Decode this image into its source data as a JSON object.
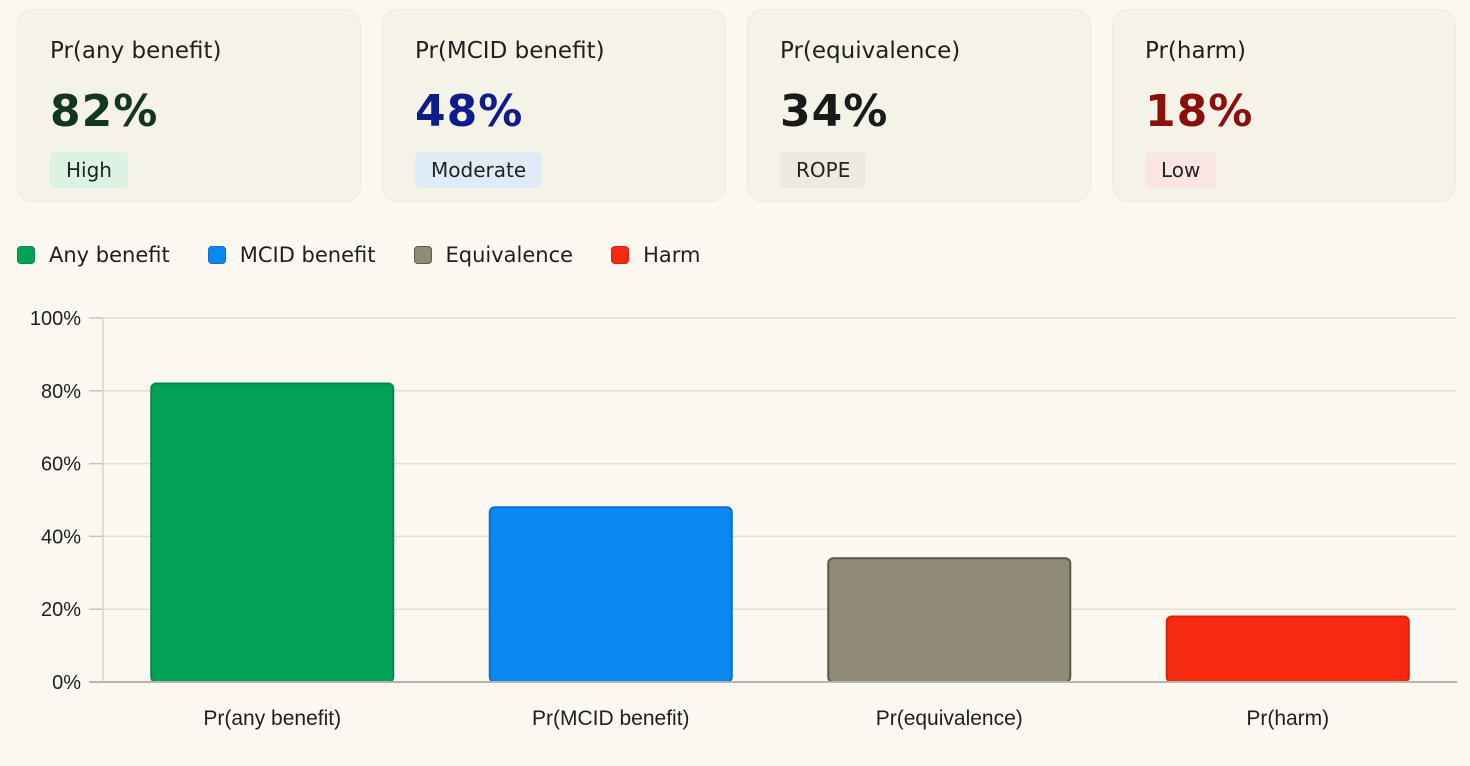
{
  "cards": [
    {
      "label": "Pr(any benefit)",
      "value": "82%",
      "badge": "High",
      "value_color": "#12361f",
      "badge_bg": "#dcf3e4"
    },
    {
      "label": "Pr(MCID benefit)",
      "value": "48%",
      "badge": "Moderate",
      "value_color": "#0d1d8c",
      "badge_bg": "#dfecf8"
    },
    {
      "label": "Pr(equivalence)",
      "value": "34%",
      "badge": "ROPE",
      "value_color": "#1a1a1a",
      "badge_bg": "#eeeadf"
    },
    {
      "label": "Pr(harm)",
      "value": "18%",
      "badge": "Low",
      "value_color": "#8c0f0f",
      "badge_bg": "#fbe5e2"
    }
  ],
  "legend": [
    {
      "label": "Any benefit",
      "color": "#02a256",
      "border": "#038a49"
    },
    {
      "label": "MCID benefit",
      "color": "#0b88f0",
      "border": "#0a6fd0"
    },
    {
      "label": "Equivalence",
      "color": "#8f8b77",
      "border": "#5c5848"
    },
    {
      "label": "Harm",
      "color": "#f62a10",
      "border": "#e01d0a"
    }
  ],
  "chart_data": {
    "type": "bar",
    "categories": [
      "Pr(any benefit)",
      "Pr(MCID benefit)",
      "Pr(equivalence)",
      "Pr(harm)"
    ],
    "values": [
      82,
      48,
      34,
      18
    ],
    "colors": [
      "#02a256",
      "#0b88f0",
      "#8f8b77",
      "#f62a10"
    ],
    "borders": [
      "#038a49",
      "#0a6fd0",
      "#5c5848",
      "#e01d0a"
    ],
    "ylim": [
      0,
      100
    ],
    "yticks": [
      0,
      20,
      40,
      60,
      80,
      100
    ],
    "ytick_labels": [
      "0%",
      "20%",
      "40%",
      "60%",
      "80%",
      "100%"
    ],
    "grid": true,
    "legend_position": "top-left",
    "title": "",
    "xlabel": "",
    "ylabel": ""
  }
}
